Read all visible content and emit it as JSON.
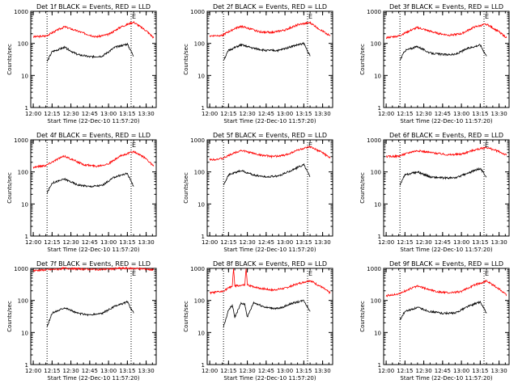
{
  "chart_data": [
    {
      "type": "line",
      "title": "Det 1f BLACK = Events, RED = LLD",
      "xlabel": "Start Time (22-Dec-10 11:57:20)",
      "ylabel": "Counts/sec",
      "xticks": [
        "12:00",
        "12:15",
        "12:30",
        "12:45",
        "13:00",
        "13:15",
        "13:30"
      ],
      "yticks": [
        "1",
        "10",
        "100",
        "1000"
      ],
      "yscale": "log",
      "ylim": [
        1,
        1000
      ],
      "xlim": [
        "11:58",
        "13:38"
      ],
      "markers": [
        {
          "label": "",
          "x": "12:11"
        },
        {
          "label": "E",
          "x": "13:18"
        }
      ],
      "series": [
        {
          "color": "#ff0000",
          "x": [
            "12:00",
            "12:10",
            "12:20",
            "12:25",
            "12:40",
            "12:50",
            "13:00",
            "13:10",
            "13:20",
            "13:30",
            "13:36"
          ],
          "values": [
            160,
            170,
            270,
            330,
            210,
            160,
            190,
            330,
            460,
            250,
            150
          ]
        },
        {
          "color": "#000000",
          "x": [
            "12:11",
            "12:15",
            "12:25",
            "12:35",
            "12:45",
            "12:55",
            "13:05",
            "13:15",
            "13:20"
          ],
          "values": [
            27,
            55,
            75,
            45,
            38,
            40,
            75,
            95,
            40
          ]
        }
      ]
    },
    {
      "type": "line",
      "title": "Det 2f BLACK = Events, RED = LLD",
      "xlabel": "Start Time (22-Dec-10 11:57:20)",
      "ylabel": "Counts/sec",
      "xticks": [
        "12:00",
        "12:15",
        "12:30",
        "12:45",
        "13:00",
        "13:15",
        "13:30"
      ],
      "yticks": [
        "1",
        "10",
        "100",
        "1000"
      ],
      "yscale": "log",
      "ylim": [
        1,
        1000
      ],
      "xlim": [
        "11:58",
        "13:38"
      ],
      "markers": [
        {
          "label": "",
          "x": "12:11"
        },
        {
          "label": "E",
          "x": "13:18"
        }
      ],
      "series": [
        {
          "color": "#ff0000",
          "x": [
            "12:00",
            "12:10",
            "12:20",
            "12:25",
            "12:40",
            "12:50",
            "13:00",
            "13:10",
            "13:20",
            "13:30",
            "13:36"
          ],
          "values": [
            170,
            180,
            290,
            340,
            230,
            220,
            260,
            380,
            440,
            240,
            170
          ]
        },
        {
          "color": "#000000",
          "x": [
            "12:11",
            "12:15",
            "12:25",
            "12:35",
            "12:45",
            "12:55",
            "13:05",
            "13:15",
            "13:20"
          ],
          "values": [
            30,
            60,
            90,
            70,
            60,
            60,
            80,
            100,
            40
          ]
        }
      ]
    },
    {
      "type": "line",
      "title": "Det 3f BLACK = Events, RED = LLD",
      "xlabel": "Start Time (22-Dec-10 11:57:20)",
      "ylabel": "Counts/sec",
      "xticks": [
        "12:00",
        "12:15",
        "12:30",
        "12:45",
        "13:00",
        "13:15",
        "13:30"
      ],
      "yticks": [
        "1",
        "10",
        "100",
        "1000"
      ],
      "yscale": "log",
      "ylim": [
        1,
        1000
      ],
      "xlim": [
        "11:58",
        "13:38"
      ],
      "markers": [
        {
          "label": "",
          "x": "12:11"
        },
        {
          "label": "E",
          "x": "13:18"
        }
      ],
      "series": [
        {
          "color": "#ff0000",
          "x": [
            "12:00",
            "12:10",
            "12:20",
            "12:25",
            "12:40",
            "12:50",
            "13:00",
            "13:10",
            "13:20",
            "13:30",
            "13:36"
          ],
          "values": [
            150,
            170,
            260,
            310,
            210,
            180,
            200,
            320,
            400,
            230,
            150
          ]
        },
        {
          "color": "#000000",
          "x": [
            "12:11",
            "12:15",
            "12:25",
            "12:35",
            "12:45",
            "12:55",
            "13:05",
            "13:15",
            "13:20"
          ],
          "values": [
            30,
            60,
            80,
            50,
            45,
            45,
            70,
            90,
            40
          ]
        }
      ]
    },
    {
      "type": "line",
      "title": "Det 4f BLACK = Events, RED = LLD",
      "xlabel": "Start Time (22-Dec-10 11:57:20)",
      "ylabel": "Counts/sec",
      "xticks": [
        "12:00",
        "12:15",
        "12:30",
        "12:45",
        "13:00",
        "13:15",
        "13:30"
      ],
      "yticks": [
        "1",
        "10",
        "100",
        "1000"
      ],
      "yscale": "log",
      "ylim": [
        1,
        1000
      ],
      "xlim": [
        "11:58",
        "13:38"
      ],
      "markers": [
        {
          "label": "",
          "x": "12:11"
        },
        {
          "label": "E",
          "x": "13:18"
        }
      ],
      "series": [
        {
          "color": "#ff0000",
          "x": [
            "12:00",
            "12:10",
            "12:20",
            "12:25",
            "12:40",
            "12:50",
            "13:00",
            "13:10",
            "13:20",
            "13:30",
            "13:36"
          ],
          "values": [
            140,
            160,
            260,
            310,
            170,
            150,
            180,
            320,
            430,
            260,
            150
          ]
        },
        {
          "color": "#000000",
          "x": [
            "12:11",
            "12:15",
            "12:25",
            "12:35",
            "12:45",
            "12:55",
            "13:05",
            "13:15",
            "13:20"
          ],
          "values": [
            22,
            45,
            60,
            40,
            35,
            38,
            70,
            90,
            35
          ]
        }
      ]
    },
    {
      "type": "line",
      "title": "Det 5f BLACK = Events, RED = LLD",
      "xlabel": "Start Time (22-Dec-10 11:57:20)",
      "ylabel": "Counts/sec",
      "xticks": [
        "12:00",
        "12:15",
        "12:30",
        "12:45",
        "13:00",
        "13:15",
        "13:30"
      ],
      "yticks": [
        "1",
        "10",
        "100",
        "1000"
      ],
      "yscale": "log",
      "ylim": [
        1,
        1000
      ],
      "xlim": [
        "11:58",
        "13:38"
      ],
      "markers": [
        {
          "label": "",
          "x": "12:11"
        },
        {
          "label": "E",
          "x": "13:18"
        }
      ],
      "series": [
        {
          "color": "#ff0000",
          "x": [
            "12:00",
            "12:10",
            "12:20",
            "12:25",
            "12:40",
            "12:50",
            "13:00",
            "13:10",
            "13:20",
            "13:30",
            "13:36"
          ],
          "values": [
            240,
            260,
            400,
            470,
            340,
            300,
            330,
            480,
            600,
            400,
            270
          ]
        },
        {
          "color": "#000000",
          "x": [
            "12:11",
            "12:15",
            "12:25",
            "12:35",
            "12:45",
            "12:55",
            "13:05",
            "13:15",
            "13:20"
          ],
          "values": [
            40,
            80,
            110,
            80,
            70,
            75,
            110,
            170,
            70
          ]
        }
      ]
    },
    {
      "type": "line",
      "title": "Det 6f BLACK = Events, RED = LLD",
      "xlabel": "Start Time (22-Dec-10 11:57:20)",
      "ylabel": "Counts/sec",
      "xticks": [
        "12:00",
        "12:15",
        "12:30",
        "12:45",
        "13:00",
        "13:15",
        "13:30"
      ],
      "yticks": [
        "1",
        "10",
        "100",
        "1000"
      ],
      "yscale": "log",
      "ylim": [
        1,
        1000
      ],
      "xlim": [
        "11:58",
        "13:38"
      ],
      "markers": [
        {
          "label": "",
          "x": "12:11"
        },
        {
          "label": "E",
          "x": "13:18"
        }
      ],
      "series": [
        {
          "color": "#ff0000",
          "x": [
            "12:00",
            "12:10",
            "12:20",
            "12:25",
            "12:40",
            "12:50",
            "13:00",
            "13:10",
            "13:20",
            "13:30",
            "13:36"
          ],
          "values": [
            300,
            310,
            420,
            460,
            380,
            340,
            360,
            480,
            580,
            430,
            330
          ]
        },
        {
          "color": "#000000",
          "x": [
            "12:11",
            "12:15",
            "12:25",
            "12:35",
            "12:45",
            "12:55",
            "13:05",
            "13:15",
            "13:20"
          ],
          "values": [
            40,
            80,
            100,
            70,
            65,
            65,
            90,
            130,
            70
          ]
        }
      ]
    },
    {
      "type": "line",
      "title": "Det 7f BLACK = Events, RED = LLD",
      "xlabel": "Start Time (22-Dec-10 11:57:20)",
      "ylabel": "Counts/sec",
      "xticks": [
        "12:00",
        "12:15",
        "12:30",
        "12:45",
        "13:00",
        "13:15",
        "13:30"
      ],
      "yticks": [
        "1",
        "10",
        "100",
        "1000"
      ],
      "yscale": "log",
      "ylim": [
        1,
        1000
      ],
      "xlim": [
        "11:58",
        "13:38"
      ],
      "markers": [
        {
          "label": "",
          "x": "12:11"
        },
        {
          "label": "E",
          "x": "13:18"
        }
      ],
      "series": [
        {
          "color": "#ff0000",
          "x": [
            "12:00",
            "12:10",
            "12:20",
            "12:25",
            "12:40",
            "12:50",
            "13:00",
            "13:10",
            "13:20",
            "13:30",
            "13:36"
          ],
          "values": [
            850,
            900,
            950,
            1000,
            950,
            920,
            950,
            1000,
            1000,
            950,
            900
          ]
        },
        {
          "color": "#000000",
          "x": [
            "12:11",
            "12:15",
            "12:25",
            "12:35",
            "12:45",
            "12:55",
            "13:05",
            "13:15",
            "13:20"
          ],
          "values": [
            15,
            40,
            60,
            40,
            35,
            40,
            65,
            90,
            40
          ]
        }
      ]
    },
    {
      "type": "line",
      "title": "Det 8f BLACK = Events, RED = LLD",
      "xlabel": "Start Time (22-Dec-10 11:57:20)",
      "ylabel": "Counts/sec",
      "xticks": [
        "12:00",
        "12:15",
        "12:30",
        "12:45",
        "13:00",
        "13:15",
        "13:30"
      ],
      "yticks": [
        "1",
        "10",
        "100",
        "1000"
      ],
      "yscale": "log",
      "ylim": [
        1,
        1000
      ],
      "xlim": [
        "11:58",
        "13:38"
      ],
      "markers": [
        {
          "label": "",
          "x": "12:11"
        },
        {
          "label": "E",
          "x": "13:18"
        }
      ],
      "series": [
        {
          "color": "#ff0000",
          "x": [
            "12:00",
            "12:10",
            "12:18",
            "12:19",
            "12:20",
            "12:28",
            "12:29",
            "12:30",
            "12:40",
            "12:50",
            "13:00",
            "13:10",
            "13:20",
            "13:30",
            "13:36"
          ],
          "values": [
            170,
            190,
            280,
            1000,
            280,
            300,
            1000,
            300,
            240,
            210,
            240,
            330,
            420,
            250,
            170
          ]
        },
        {
          "color": "#000000",
          "x": [
            "12:11",
            "12:15",
            "12:18",
            "12:20",
            "12:25",
            "12:28",
            "12:30",
            "12:35",
            "12:45",
            "12:55",
            "13:05",
            "13:15",
            "13:20"
          ],
          "values": [
            15,
            50,
            70,
            30,
            80,
            75,
            30,
            85,
            60,
            55,
            80,
            100,
            45
          ]
        }
      ]
    },
    {
      "type": "line",
      "title": "Det 9f BLACK = Events, RED = LLD",
      "xlabel": "Start Time (22-Dec-10 11:57:20)",
      "ylabel": "Counts/sec",
      "xticks": [
        "12:00",
        "12:15",
        "12:30",
        "12:45",
        "13:00",
        "13:15",
        "13:30"
      ],
      "yticks": [
        "1",
        "10",
        "100",
        "1000"
      ],
      "yscale": "log",
      "ylim": [
        1,
        1000
      ],
      "xlim": [
        "11:58",
        "13:38"
      ],
      "markers": [
        {
          "label": "",
          "x": "12:11"
        },
        {
          "label": "E",
          "x": "13:18"
        }
      ],
      "series": [
        {
          "color": "#ff0000",
          "x": [
            "12:00",
            "12:10",
            "12:20",
            "12:25",
            "12:40",
            "12:50",
            "13:00",
            "13:10",
            "13:20",
            "13:30",
            "13:36"
          ],
          "values": [
            140,
            160,
            240,
            280,
            190,
            170,
            190,
            300,
            400,
            230,
            150
          ]
        },
        {
          "color": "#000000",
          "x": [
            "12:11",
            "12:15",
            "12:25",
            "12:35",
            "12:45",
            "12:55",
            "13:05",
            "13:15",
            "13:20"
          ],
          "values": [
            25,
            45,
            60,
            45,
            40,
            40,
            65,
            90,
            40
          ]
        }
      ]
    }
  ]
}
